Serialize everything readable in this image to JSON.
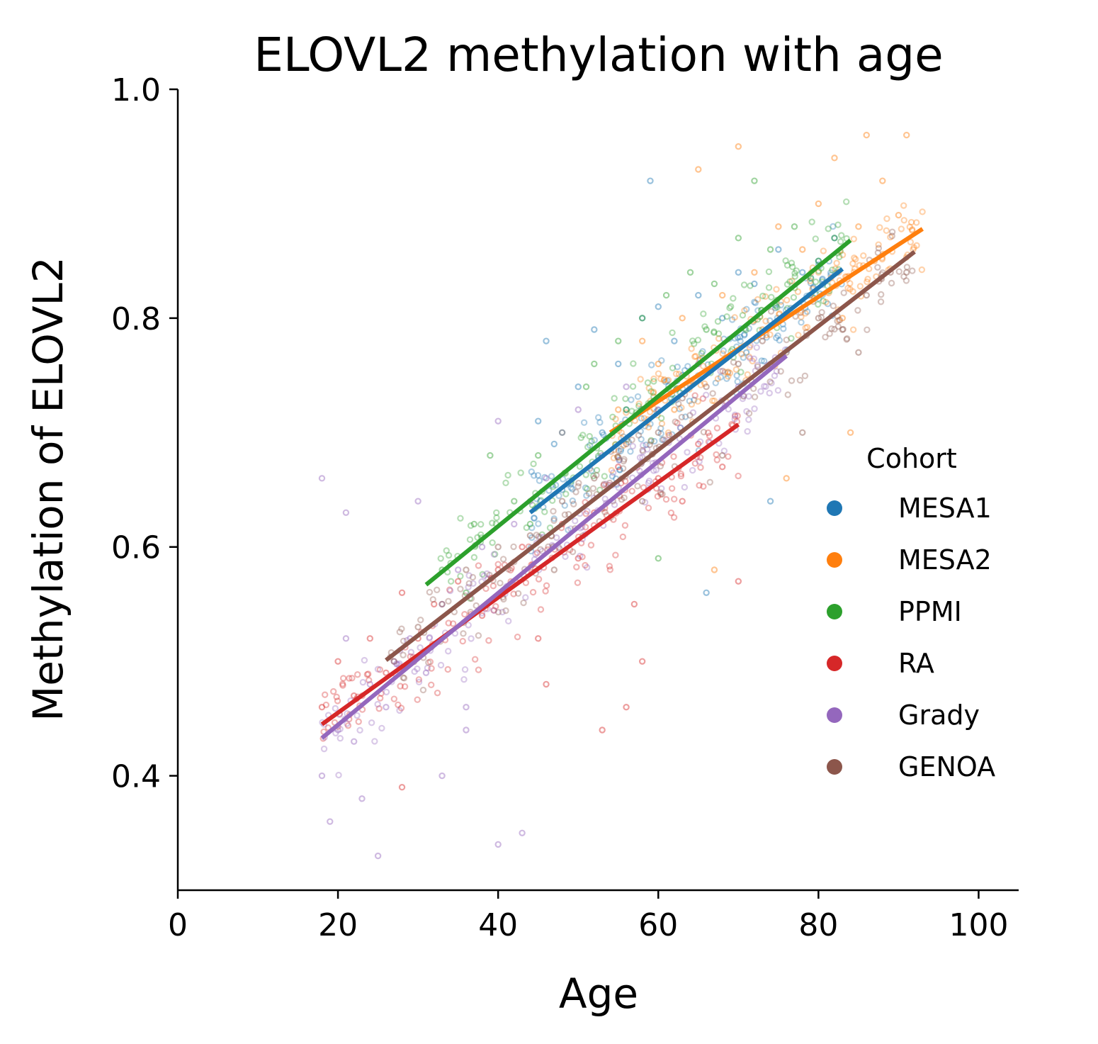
{
  "chart_data": {
    "type": "scatter",
    "title": "ELOVL2 methylation with age",
    "xlabel": "Age",
    "ylabel": "Methylation of ELOVL2",
    "xlim": [
      0,
      105
    ],
    "ylim": [
      0.3,
      1.0
    ],
    "x_ticks": [
      "0",
      "20",
      "40",
      "60",
      "80",
      "100"
    ],
    "y_ticks": [
      "0.4",
      "0.6",
      "0.8",
      "1.0"
    ],
    "grid": false,
    "legend": {
      "title": "Cohort",
      "position": "right"
    },
    "series": [
      {
        "name": "MESA1",
        "color": "#1f77b4",
        "age_range": [
          44,
          83
        ],
        "fit": {
          "x": [
            44,
            83
          ],
          "y": [
            0.63,
            0.843
          ]
        },
        "points": [
          [
            45,
            0.71
          ],
          [
            47,
            0.69
          ],
          [
            50,
            0.74
          ],
          [
            52,
            0.79
          ],
          [
            55,
            0.76
          ],
          [
            58,
            0.8
          ],
          [
            60,
            0.81
          ],
          [
            62,
            0.78
          ],
          [
            65,
            0.82
          ],
          [
            68,
            0.8
          ],
          [
            70,
            0.84
          ],
          [
            72,
            0.83
          ],
          [
            75,
            0.86
          ],
          [
            78,
            0.84
          ],
          [
            80,
            0.85
          ],
          [
            82,
            0.87
          ],
          [
            48,
            0.65
          ],
          [
            53,
            0.7
          ],
          [
            59,
            0.92
          ],
          [
            66,
            0.56
          ],
          [
            46,
            0.78
          ],
          [
            74,
            0.64
          ],
          [
            56,
            0.72
          ],
          [
            63,
            0.75
          ],
          [
            71,
            0.77
          ]
        ]
      },
      {
        "name": "MESA2",
        "color": "#ff7f0e",
        "age_range": [
          54,
          93
        ],
        "fit": {
          "x": [
            54,
            93
          ],
          "y": [
            0.7,
            0.878
          ]
        },
        "points": [
          [
            55,
            0.72
          ],
          [
            58,
            0.78
          ],
          [
            60,
            0.76
          ],
          [
            63,
            0.8
          ],
          [
            65,
            0.93
          ],
          [
            68,
            0.82
          ],
          [
            70,
            0.95
          ],
          [
            72,
            0.84
          ],
          [
            75,
            0.88
          ],
          [
            78,
            0.86
          ],
          [
            80,
            0.9
          ],
          [
            82,
            0.94
          ],
          [
            85,
            0.88
          ],
          [
            88,
            0.92
          ],
          [
            90,
            0.89
          ],
          [
            91,
            0.96
          ],
          [
            86,
            0.96
          ],
          [
            84,
            0.7
          ],
          [
            76,
            0.66
          ],
          [
            67,
            0.58
          ],
          [
            62,
            0.72
          ],
          [
            73,
            0.79
          ],
          [
            79,
            0.82
          ],
          [
            83,
            0.8
          ],
          [
            87,
            0.85
          ]
        ]
      },
      {
        "name": "PPMI",
        "color": "#2ca02c",
        "age_range": [
          31,
          84
        ],
        "fit": {
          "x": [
            31,
            84
          ],
          "y": [
            0.567,
            0.868
          ]
        },
        "points": [
          [
            33,
            0.58
          ],
          [
            37,
            0.62
          ],
          [
            39,
            0.68
          ],
          [
            42,
            0.64
          ],
          [
            45,
            0.68
          ],
          [
            48,
            0.7
          ],
          [
            51,
            0.74
          ],
          [
            55,
            0.78
          ],
          [
            58,
            0.8
          ],
          [
            61,
            0.82
          ],
          [
            64,
            0.84
          ],
          [
            67,
            0.83
          ],
          [
            70,
            0.87
          ],
          [
            72,
            0.92
          ],
          [
            74,
            0.86
          ],
          [
            77,
            0.88
          ],
          [
            80,
            0.85
          ],
          [
            82,
            0.87
          ],
          [
            60,
            0.59
          ],
          [
            36,
            0.56
          ],
          [
            52,
            0.76
          ],
          [
            66,
            0.79
          ],
          [
            56,
            0.72
          ],
          [
            44,
            0.62
          ]
        ]
      },
      {
        "name": "RA",
        "color": "#d62728",
        "age_range": [
          18,
          70
        ],
        "fit": {
          "x": [
            18,
            70
          ],
          "y": [
            0.445,
            0.707
          ]
        },
        "points": [
          [
            18,
            0.46
          ],
          [
            20,
            0.5
          ],
          [
            22,
            0.47
          ],
          [
            24,
            0.52
          ],
          [
            26,
            0.49
          ],
          [
            28,
            0.56
          ],
          [
            30,
            0.52
          ],
          [
            32,
            0.55
          ],
          [
            35,
            0.57
          ],
          [
            38,
            0.54
          ],
          [
            40,
            0.58
          ],
          [
            43,
            0.6
          ],
          [
            45,
            0.52
          ],
          [
            48,
            0.62
          ],
          [
            50,
            0.59
          ],
          [
            52,
            0.63
          ],
          [
            55,
            0.67
          ],
          [
            57,
            0.55
          ],
          [
            60,
            0.66
          ],
          [
            63,
            0.64
          ],
          [
            65,
            0.69
          ],
          [
            68,
            0.67
          ],
          [
            70,
            0.57
          ],
          [
            28,
            0.39
          ],
          [
            53,
            0.44
          ],
          [
            56,
            0.46
          ],
          [
            58,
            0.5
          ],
          [
            46,
            0.48
          ]
        ]
      },
      {
        "name": "Grady",
        "color": "#9467bd",
        "age_range": [
          18,
          76
        ],
        "fit": {
          "x": [
            18,
            76
          ],
          "y": [
            0.433,
            0.767
          ]
        },
        "points": [
          [
            18,
            0.4
          ],
          [
            19,
            0.36
          ],
          [
            20,
            0.44
          ],
          [
            21,
            0.52
          ],
          [
            22,
            0.43
          ],
          [
            23,
            0.38
          ],
          [
            24,
            0.48
          ],
          [
            25,
            0.33
          ],
          [
            26,
            0.46
          ],
          [
            27,
            0.5
          ],
          [
            29,
            0.52
          ],
          [
            30,
            0.64
          ],
          [
            31,
            0.49
          ],
          [
            33,
            0.55
          ],
          [
            35,
            0.58
          ],
          [
            36,
            0.46
          ],
          [
            38,
            0.6
          ],
          [
            40,
            0.71
          ],
          [
            42,
            0.62
          ],
          [
            44,
            0.64
          ],
          [
            46,
            0.66
          ],
          [
            48,
            0.7
          ],
          [
            50,
            0.72
          ],
          [
            53,
            0.68
          ],
          [
            56,
            0.74
          ],
          [
            60,
            0.72
          ],
          [
            65,
            0.76
          ],
          [
            70,
            0.74
          ],
          [
            74,
            0.76
          ],
          [
            18,
            0.66
          ],
          [
            21,
            0.63
          ],
          [
            40,
            0.34
          ],
          [
            43,
            0.35
          ],
          [
            36,
            0.44
          ],
          [
            33,
            0.4
          ]
        ]
      },
      {
        "name": "GENOA",
        "color": "#8c564b",
        "age_range": [
          26,
          92
        ],
        "fit": {
          "x": [
            26,
            92
          ],
          "y": [
            0.501,
            0.858
          ]
        },
        "points": [
          [
            27,
            0.5
          ],
          [
            30,
            0.53
          ],
          [
            33,
            0.55
          ],
          [
            36,
            0.58
          ],
          [
            40,
            0.6
          ],
          [
            44,
            0.61
          ],
          [
            48,
            0.64
          ],
          [
            52,
            0.66
          ],
          [
            56,
            0.69
          ],
          [
            60,
            0.7
          ],
          [
            63,
            0.73
          ],
          [
            66,
            0.74
          ],
          [
            70,
            0.76
          ],
          [
            73,
            0.78
          ],
          [
            76,
            0.77
          ],
          [
            80,
            0.8
          ],
          [
            83,
            0.79
          ],
          [
            86,
            0.82
          ],
          [
            89,
            0.84
          ],
          [
            91,
            0.84
          ],
          [
            78,
            0.7
          ],
          [
            68,
            0.68
          ],
          [
            58,
            0.64
          ],
          [
            47,
            0.58
          ],
          [
            85,
            0.77
          ]
        ]
      }
    ]
  }
}
